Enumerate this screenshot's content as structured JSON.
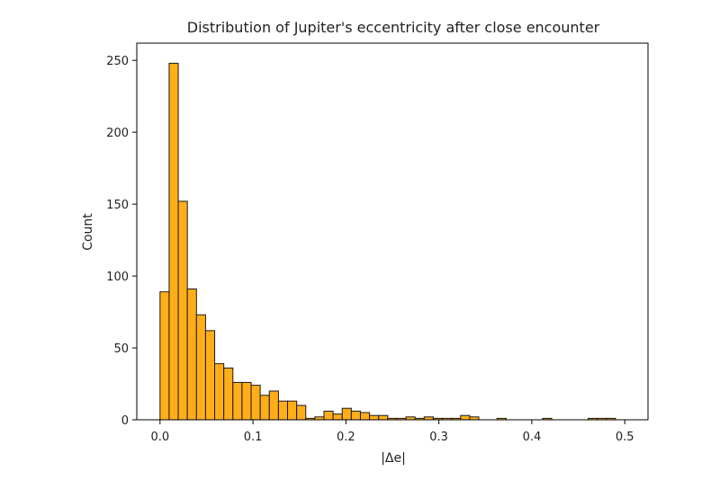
{
  "chart_data": {
    "type": "bar",
    "title": "Distribution of Jupiter's eccentricity after close encounter",
    "xlabel": "|Δe|",
    "ylabel": "Count",
    "xlim": [
      -0.025,
      0.525
    ],
    "ylim": [
      0,
      262
    ],
    "xticks": [
      0.0,
      0.1,
      0.2,
      0.3,
      0.4,
      0.5
    ],
    "xtick_labels": [
      "0.0",
      "0.1",
      "0.2",
      "0.3",
      "0.4",
      "0.5"
    ],
    "yticks": [
      0,
      50,
      100,
      150,
      200,
      250
    ],
    "ytick_labels": [
      "0",
      "50",
      "100",
      "150",
      "200",
      "250"
    ],
    "grid": false,
    "legend": "none",
    "bin_width": 0.0098,
    "bin_starts": [
      0.0,
      0.0098,
      0.0196,
      0.0294,
      0.0392,
      0.049,
      0.0588,
      0.0686,
      0.0784,
      0.0882,
      0.098,
      0.1078,
      0.1176,
      0.1274,
      0.1372,
      0.147,
      0.1568,
      0.1666,
      0.1764,
      0.1862,
      0.196,
      0.2058,
      0.2156,
      0.2254,
      0.2352,
      0.245,
      0.2548,
      0.2646,
      0.2744,
      0.2842,
      0.294,
      0.3038,
      0.3136,
      0.3234,
      0.3332,
      0.343,
      0.3528,
      0.3626,
      0.3724,
      0.3822,
      0.392,
      0.4018,
      0.4116,
      0.4214,
      0.4312,
      0.441,
      0.4508,
      0.4606,
      0.4704,
      0.4802,
      0.49
    ],
    "values": [
      89,
      248,
      152,
      91,
      73,
      62,
      39,
      36,
      26,
      26,
      24,
      17,
      20,
      13,
      13,
      10,
      1,
      2,
      6,
      4,
      8,
      6,
      5,
      3,
      3,
      1,
      1,
      2,
      1,
      2,
      1,
      1,
      1,
      3,
      2,
      0,
      0,
      1,
      0,
      0,
      0,
      0,
      1,
      0,
      0,
      0,
      0,
      1,
      1,
      1,
      0
    ],
    "bar_color": "#ffae1a",
    "edge_color": "#1a1a1a"
  }
}
